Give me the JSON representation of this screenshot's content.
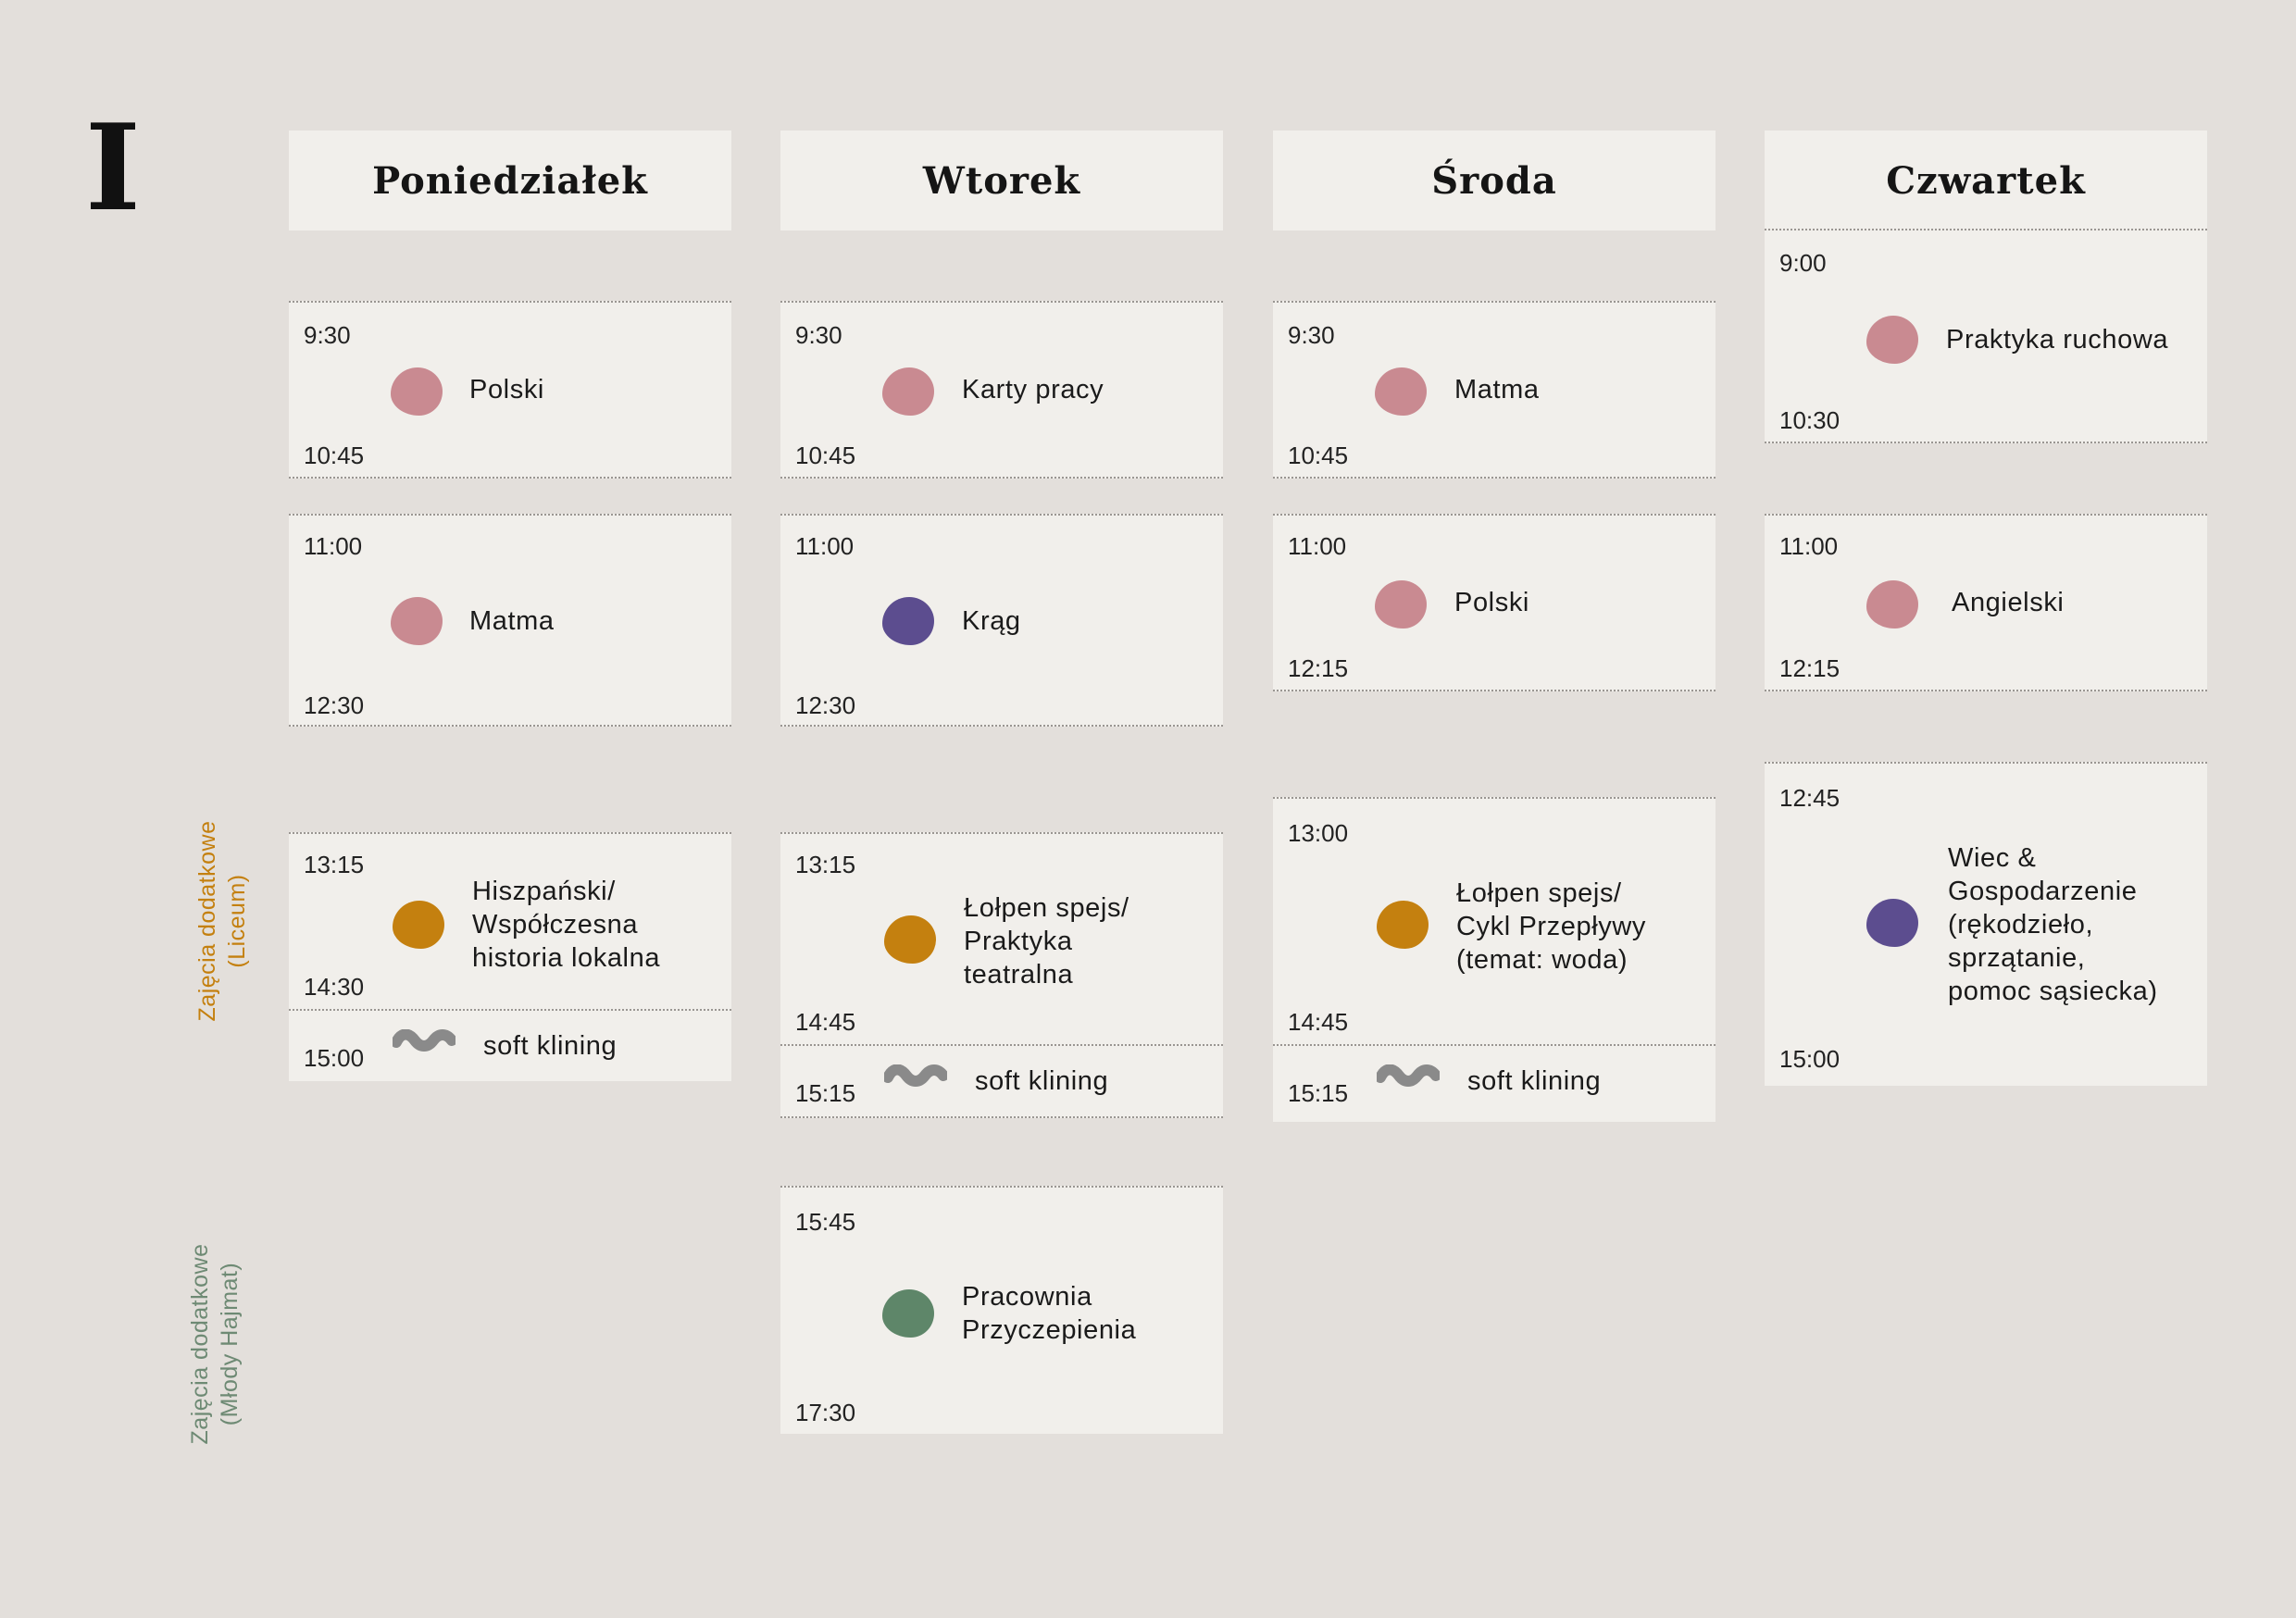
{
  "page": {
    "marker": "I"
  },
  "colors": {
    "pink": "#c98a91",
    "purple": "#5c4d8f",
    "orange": "#c4800f",
    "green": "#5e8669",
    "gray": "#8a8a8a",
    "liceum_label": "#c4800f",
    "hajmat_label": "#6e8a74"
  },
  "side_labels": {
    "liceum": [
      "Zajęcia dodatkowe",
      "(Liceum)"
    ],
    "hajmat": [
      "Zajęcia dodatkowe",
      "(Młody Hajmat)"
    ]
  },
  "days": [
    {
      "name": "Poniedziałek",
      "slots": [
        {
          "start": "9:30",
          "end": "10:45",
          "title": [
            "Polski"
          ],
          "color": "pink"
        },
        {
          "start": "11:00",
          "end": "12:30",
          "title": [
            "Matma"
          ],
          "color": "pink"
        },
        {
          "start": "13:15",
          "end": "14:30",
          "title": [
            "Hiszpański/",
            "Współczesna",
            "historia lokalna"
          ],
          "color": "orange"
        },
        {
          "start": "15:00",
          "end": "",
          "title": [
            "soft klining"
          ],
          "color": "gray",
          "icon": "wavy-icon"
        }
      ]
    },
    {
      "name": "Wtorek",
      "slots": [
        {
          "start": "9:30",
          "end": "10:45",
          "title": [
            "Karty pracy"
          ],
          "color": "pink"
        },
        {
          "start": "11:00",
          "end": "12:30",
          "title": [
            "Krąg"
          ],
          "color": "purple"
        },
        {
          "start": "13:15",
          "end": "14:45",
          "title": [
            "Łołpen spejs/",
            "Praktyka",
            "teatralna"
          ],
          "color": "orange"
        },
        {
          "start": "15:15",
          "end": "",
          "title": [
            "soft klining"
          ],
          "color": "gray",
          "icon": "wavy-icon"
        },
        {
          "start": "15:45",
          "end": "17:30",
          "title": [
            "Pracownia",
            "Przyczepienia"
          ],
          "color": "green"
        }
      ]
    },
    {
      "name": "Środa",
      "slots": [
        {
          "start": "9:30",
          "end": "10:45",
          "title": [
            "Matma"
          ],
          "color": "pink"
        },
        {
          "start": "11:00",
          "end": "12:15",
          "title": [
            "Polski"
          ],
          "color": "pink"
        },
        {
          "start": "13:00",
          "end": "14:45",
          "title": [
            "Łołpen spejs/",
            "Cykl Przepływy",
            "(temat: woda)"
          ],
          "color": "orange"
        },
        {
          "start": "15:15",
          "end": "",
          "title": [
            "soft klining"
          ],
          "color": "gray",
          "icon": "wavy-icon"
        }
      ]
    },
    {
      "name": "Czwartek",
      "slots": [
        {
          "start": "9:00",
          "end": "10:30",
          "title": [
            "Praktyka ruchowa"
          ],
          "color": "pink"
        },
        {
          "start": "11:00",
          "end": "12:15",
          "title": [
            "Angielski"
          ],
          "color": "pink"
        },
        {
          "start": "12:45",
          "end": "15:00",
          "title": [
            "Wiec &",
            "Gospodarzenie",
            "(rękodzieło,",
            "sprzątanie,",
            "pomoc sąsiecka)"
          ],
          "color": "purple"
        }
      ]
    }
  ]
}
